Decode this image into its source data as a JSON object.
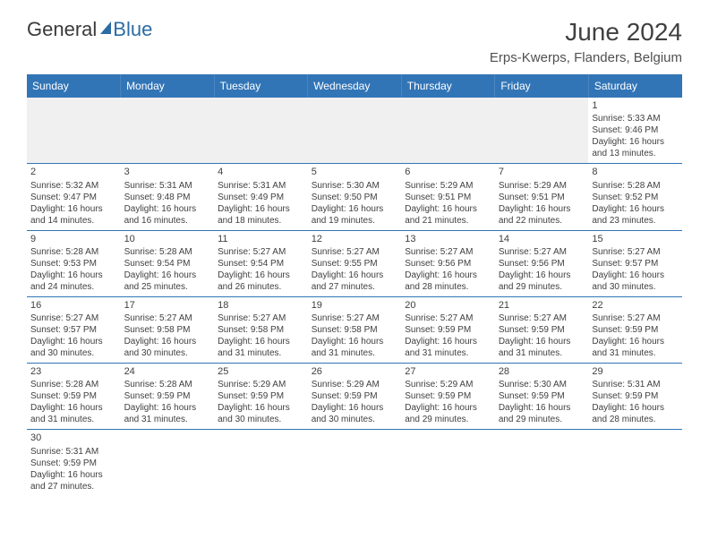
{
  "logo": {
    "word1": "General",
    "word2": "Blue"
  },
  "title": "June 2024",
  "subtitle": "Erps-Kwerps, Flanders, Belgium",
  "colors": {
    "header_bg": "#3275b7",
    "header_text": "#ffffff",
    "border": "#3275b7",
    "body_text": "#404040",
    "blank_row": "#f0f0f0",
    "logo_dark": "#3a3a3a",
    "logo_blue": "#2b6ca3"
  },
  "columns": [
    "Sunday",
    "Monday",
    "Tuesday",
    "Wednesday",
    "Thursday",
    "Friday",
    "Saturday"
  ],
  "weeks": [
    [
      null,
      null,
      null,
      null,
      null,
      null,
      {
        "d": "1",
        "sr": "5:33 AM",
        "ss": "9:46 PM",
        "dl": "16 hours and 13 minutes."
      }
    ],
    [
      {
        "d": "2",
        "sr": "5:32 AM",
        "ss": "9:47 PM",
        "dl": "16 hours and 14 minutes."
      },
      {
        "d": "3",
        "sr": "5:31 AM",
        "ss": "9:48 PM",
        "dl": "16 hours and 16 minutes."
      },
      {
        "d": "4",
        "sr": "5:31 AM",
        "ss": "9:49 PM",
        "dl": "16 hours and 18 minutes."
      },
      {
        "d": "5",
        "sr": "5:30 AM",
        "ss": "9:50 PM",
        "dl": "16 hours and 19 minutes."
      },
      {
        "d": "6",
        "sr": "5:29 AM",
        "ss": "9:51 PM",
        "dl": "16 hours and 21 minutes."
      },
      {
        "d": "7",
        "sr": "5:29 AM",
        "ss": "9:51 PM",
        "dl": "16 hours and 22 minutes."
      },
      {
        "d": "8",
        "sr": "5:28 AM",
        "ss": "9:52 PM",
        "dl": "16 hours and 23 minutes."
      }
    ],
    [
      {
        "d": "9",
        "sr": "5:28 AM",
        "ss": "9:53 PM",
        "dl": "16 hours and 24 minutes."
      },
      {
        "d": "10",
        "sr": "5:28 AM",
        "ss": "9:54 PM",
        "dl": "16 hours and 25 minutes."
      },
      {
        "d": "11",
        "sr": "5:27 AM",
        "ss": "9:54 PM",
        "dl": "16 hours and 26 minutes."
      },
      {
        "d": "12",
        "sr": "5:27 AM",
        "ss": "9:55 PM",
        "dl": "16 hours and 27 minutes."
      },
      {
        "d": "13",
        "sr": "5:27 AM",
        "ss": "9:56 PM",
        "dl": "16 hours and 28 minutes."
      },
      {
        "d": "14",
        "sr": "5:27 AM",
        "ss": "9:56 PM",
        "dl": "16 hours and 29 minutes."
      },
      {
        "d": "15",
        "sr": "5:27 AM",
        "ss": "9:57 PM",
        "dl": "16 hours and 30 minutes."
      }
    ],
    [
      {
        "d": "16",
        "sr": "5:27 AM",
        "ss": "9:57 PM",
        "dl": "16 hours and 30 minutes."
      },
      {
        "d": "17",
        "sr": "5:27 AM",
        "ss": "9:58 PM",
        "dl": "16 hours and 30 minutes."
      },
      {
        "d": "18",
        "sr": "5:27 AM",
        "ss": "9:58 PM",
        "dl": "16 hours and 31 minutes."
      },
      {
        "d": "19",
        "sr": "5:27 AM",
        "ss": "9:58 PM",
        "dl": "16 hours and 31 minutes."
      },
      {
        "d": "20",
        "sr": "5:27 AM",
        "ss": "9:59 PM",
        "dl": "16 hours and 31 minutes."
      },
      {
        "d": "21",
        "sr": "5:27 AM",
        "ss": "9:59 PM",
        "dl": "16 hours and 31 minutes."
      },
      {
        "d": "22",
        "sr": "5:27 AM",
        "ss": "9:59 PM",
        "dl": "16 hours and 31 minutes."
      }
    ],
    [
      {
        "d": "23",
        "sr": "5:28 AM",
        "ss": "9:59 PM",
        "dl": "16 hours and 31 minutes."
      },
      {
        "d": "24",
        "sr": "5:28 AM",
        "ss": "9:59 PM",
        "dl": "16 hours and 31 minutes."
      },
      {
        "d": "25",
        "sr": "5:29 AM",
        "ss": "9:59 PM",
        "dl": "16 hours and 30 minutes."
      },
      {
        "d": "26",
        "sr": "5:29 AM",
        "ss": "9:59 PM",
        "dl": "16 hours and 30 minutes."
      },
      {
        "d": "27",
        "sr": "5:29 AM",
        "ss": "9:59 PM",
        "dl": "16 hours and 29 minutes."
      },
      {
        "d": "28",
        "sr": "5:30 AM",
        "ss": "9:59 PM",
        "dl": "16 hours and 29 minutes."
      },
      {
        "d": "29",
        "sr": "5:31 AM",
        "ss": "9:59 PM",
        "dl": "16 hours and 28 minutes."
      }
    ],
    [
      {
        "d": "30",
        "sr": "5:31 AM",
        "ss": "9:59 PM",
        "dl": "16 hours and 27 minutes."
      },
      null,
      null,
      null,
      null,
      null,
      null
    ]
  ],
  "labels": {
    "sunrise": "Sunrise: ",
    "sunset": "Sunset: ",
    "daylight": "Daylight: "
  }
}
